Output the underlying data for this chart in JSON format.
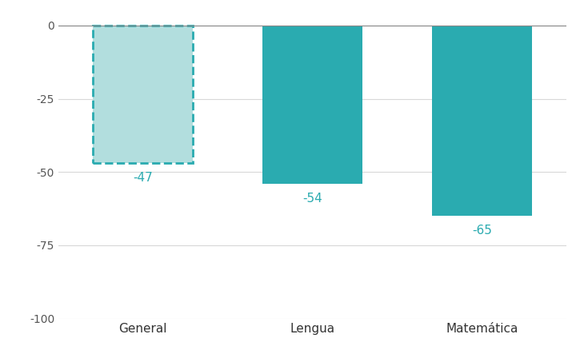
{
  "categories": [
    "General",
    "Lengua",
    "Matemática"
  ],
  "values": [
    -47,
    -54,
    -65
  ],
  "bar_colors": [
    "#b2dede",
    "#2aabb0",
    "#2aabb0"
  ],
  "dashed_bar_index": 0,
  "dashed_color": "#2aabb0",
  "label_color": "#2aabb0",
  "ylim": [
    -100,
    5
  ],
  "yticks": [
    0,
    -25,
    -50,
    -75,
    -100
  ],
  "label_offsets": [
    -3,
    -3,
    -3
  ],
  "background_color": "#ffffff",
  "grid_color": "#d8d8d8",
  "bar_width": 0.65,
  "x_positions": [
    0,
    1.1,
    2.2
  ],
  "xlim": [
    -0.55,
    2.75
  ],
  "figsize": [
    7.3,
    4.53
  ],
  "dpi": 100
}
